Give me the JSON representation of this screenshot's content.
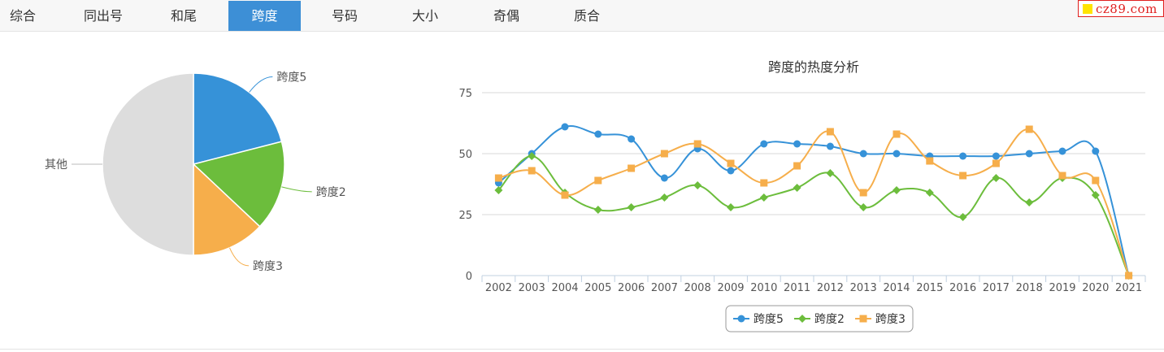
{
  "tabs": [
    {
      "label": "综合",
      "active": false
    },
    {
      "label": "同出号",
      "active": false
    },
    {
      "label": "和尾",
      "active": false
    },
    {
      "label": "跨度",
      "active": true
    },
    {
      "label": "号码",
      "active": false
    },
    {
      "label": "大小",
      "active": false
    },
    {
      "label": "奇偶",
      "active": false
    },
    {
      "label": "质合",
      "active": false
    }
  ],
  "brand": {
    "text": "cz89.com",
    "color": "#e0201f"
  },
  "colors": {
    "tab_active": "#3d8fd6",
    "series1": "#3692d8",
    "series2": "#6cbd3c",
    "series3": "#f6ae4b",
    "other": "#dddddd"
  },
  "chart_data": [
    {
      "type": "pie",
      "slices": [
        {
          "label": "跨度5",
          "value": 21,
          "color": "#3692d8"
        },
        {
          "label": "跨度2",
          "value": 16,
          "color": "#6cbd3c"
        },
        {
          "label": "跨度3",
          "value": 13,
          "color": "#f6ae4b"
        },
        {
          "label": "其他",
          "value": 50,
          "color": "#dddddd"
        }
      ]
    },
    {
      "type": "line",
      "title": "跨度的热度分析",
      "x": [
        "2002",
        "2003",
        "2004",
        "2005",
        "2006",
        "2007",
        "2008",
        "2009",
        "2010",
        "2011",
        "2012",
        "2013",
        "2014",
        "2015",
        "2016",
        "2017",
        "2018",
        "2019",
        "2020",
        "2021"
      ],
      "series": [
        {
          "name": "跨度5",
          "marker": "circle",
          "color": "#3692d8",
          "values": [
            38,
            50,
            61,
            58,
            56,
            40,
            52,
            43,
            54,
            54,
            53,
            50,
            50,
            49,
            49,
            49,
            50,
            51,
            51,
            0
          ]
        },
        {
          "name": "跨度2",
          "marker": "diamond",
          "color": "#6cbd3c",
          "values": [
            35,
            49,
            34,
            27,
            28,
            32,
            37,
            28,
            32,
            36,
            42,
            28,
            35,
            34,
            24,
            40,
            30,
            40,
            33,
            0
          ]
        },
        {
          "name": "跨度3",
          "marker": "square",
          "color": "#f6ae4b",
          "values": [
            40,
            43,
            33,
            39,
            44,
            50,
            54,
            46,
            38,
            45,
            59,
            34,
            58,
            47,
            41,
            46,
            60,
            41,
            39,
            0
          ]
        }
      ],
      "y_ticks": [
        0,
        25,
        50,
        75
      ],
      "ylim": [
        0,
        75
      ],
      "grid": true,
      "legend_position": "bottom-center"
    }
  ]
}
